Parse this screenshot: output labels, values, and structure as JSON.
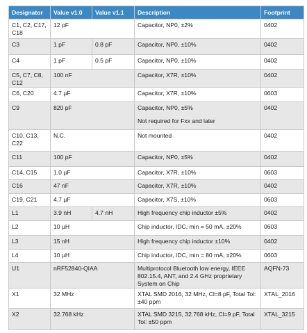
{
  "table": {
    "header": [
      "Designator",
      "Value v1.0",
      "Value v1.1",
      "Description",
      "Footprint"
    ],
    "rows": [
      [
        "C1, C2, C17, C18",
        "12 pF",
        "Capacitor, NP0, ±2%",
        "0402"
      ],
      [
        "C3",
        "1 pF",
        "0.8 pF",
        "Capacitor, NP0, ±10%",
        "0402"
      ],
      [
        "C4",
        "1 pF",
        "0.5 pF",
        "Capacitor, NP0, ±10%",
        "0402"
      ],
      [
        "C5, C7, C8, C12",
        "100 nF",
        "Capacitor, X7R, ±10%",
        "0402"
      ],
      [
        "C6, C20",
        "4.7 µF",
        "Capacitor, X7R, ±10%",
        "0603"
      ],
      [
        "C9",
        "820 pF",
        [
          "Capacitor, NP0, ±5%",
          "Not required for Fxx and later"
        ],
        "0402"
      ],
      [
        "C10, C13, C22",
        "N.C.",
        "Not mounted",
        "0402"
      ],
      [
        "C11",
        "100 pF",
        "Capacitor, NP0, ±5%",
        "0402"
      ],
      [
        "C14, C15",
        "1.0 µF",
        "Capacitor, X7R, ±10%",
        "0603"
      ],
      [
        "C16",
        "47 nF",
        "Capacitor, X7R, ±10%",
        "0402"
      ],
      [
        "C19, C21",
        "4.7 µF",
        "Capacitor, X7S, ±10%",
        "0603"
      ],
      [
        "L1",
        "3.9 nH",
        "4.7 nH",
        "High frequency chip inductor ±5%",
        "0402"
      ],
      [
        "L2",
        "10 µH",
        "Chip inductor, IDC, min = 50 mA, ±20%",
        "0603"
      ],
      [
        "L3",
        "15 nH",
        "High frequency chip inductor ±10%",
        "0402"
      ],
      [
        "L4",
        "10 µH",
        "Chip inductor, IDC, min = 80 mA, ±20%",
        "0603"
      ],
      [
        "U1",
        "nRF52840-QIAA",
        "Multiprotocol Bluetooth low energy, IEEE 802.15.4, ANT, and 2.4 GHz proprietary System on Chip",
        "AQFN-73"
      ],
      [
        "X1",
        "32 MHz",
        "XTAL SMD 2016, 32 MHz, Cl=8 pF, Total Tol: ±40 ppm",
        "XTAL_2016"
      ],
      [
        "X2",
        "32.768 kHz",
        "XTAL SMD 3215, 32.768 kHz, Cl=9 pF, Total Tol: ±50 ppm",
        "XTAL_3215"
      ]
    ]
  }
}
